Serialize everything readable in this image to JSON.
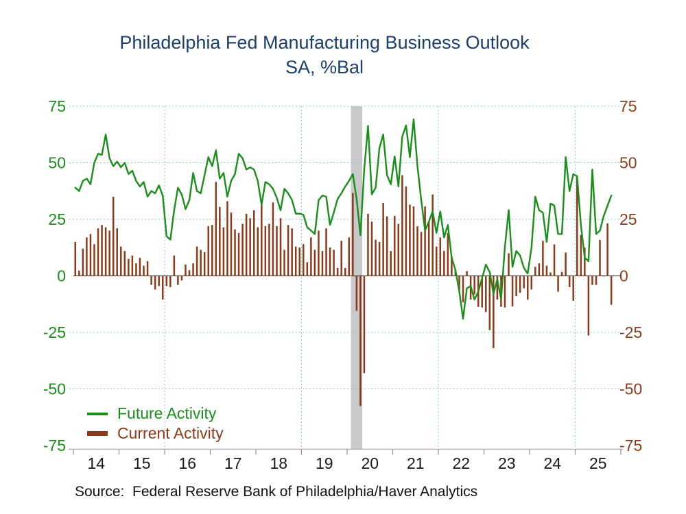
{
  "page": {
    "background": "#FFFFFF"
  },
  "title": {
    "line1": "Philadelphia Fed Manufacturing Business Outlook",
    "line2": "SA, %Bal",
    "color": "#1B3F6E"
  },
  "legend": {
    "items": [
      {
        "label": "Future Activity",
        "series": "future",
        "swatch": "line",
        "color": "#189018"
      },
      {
        "label": "Current Activity",
        "series": "current",
        "swatch": "bar",
        "color": "#8E3A18"
      }
    ]
  },
  "source": {
    "text": "Source:  Federal Reserve Bank of Philadelphia/Haver Analytics",
    "color": "#111111"
  },
  "colors": {
    "title": "#1B3F6E",
    "future_line": "#189018",
    "current_bar": "#8E3A18",
    "left_axis_text": "#189018",
    "right_axis_text": "#8E3A18",
    "grid": "#82CEDF",
    "axis_line": "#B7A8C6",
    "tick": "#8F8FA0",
    "tick_label": "#1A1A1A",
    "zero_line": "#4A4A4A",
    "recession_band": "#C9C9C9"
  },
  "chart_data": {
    "type": "line+bar combo, monthly time series",
    "title": "Philadelphia Fed Manufacturing Business Outlook",
    "subtitle": "SA, %Bal",
    "frequency": "monthly",
    "x_start": "2014-01",
    "x_end": "2025-10",
    "x_tick_labels": [
      "14",
      "15",
      "16",
      "17",
      "18",
      "19",
      "20",
      "21",
      "22",
      "23",
      "24",
      "25"
    ],
    "y_ticks": [
      75,
      50,
      25,
      0,
      -25,
      -50,
      -75
    ],
    "ylim": [
      -75,
      75
    ],
    "h_gridlines": [
      75,
      50,
      25,
      -25,
      -50
    ],
    "v_gridline_years": [
      2016,
      2019,
      2022,
      2025
    ],
    "grid_style": "dotted light blue",
    "legend_position": "bottom-left inside plot",
    "recession_band": {
      "from": "2020-02",
      "to": "2020-04"
    },
    "series": [
      {
        "name": "Future Activity",
        "type": "line",
        "color": "#189018",
        "values": [
          39,
          37.5,
          42,
          43,
          40.5,
          50,
          54,
          53.5,
          62.5,
          52,
          48.5,
          50.5,
          48,
          50,
          45,
          46.5,
          42,
          39.5,
          41.5,
          35,
          37.5,
          36.5,
          40,
          35.5,
          17.5,
          16,
          29,
          39,
          36,
          29.5,
          33.5,
          45.5,
          37.5,
          36.5,
          44.5,
          52.5,
          48.5,
          55.5,
          43,
          45.5,
          35,
          42,
          45,
          54,
          52,
          47,
          48,
          47,
          42,
          31.5,
          41.5,
          40.5,
          38.5,
          34.5,
          29,
          38.5,
          36.5,
          33.5,
          27.5,
          27.5,
          27,
          21.5,
          20,
          18.5,
          33.5,
          35.5,
          35,
          22.5,
          28,
          34,
          36.5,
          39.5,
          42,
          45,
          34,
          18,
          47,
          66.3,
          36,
          39,
          56.5,
          62.5,
          44.5,
          40.5,
          52.8,
          39.5,
          61.5,
          66.5,
          52.5,
          69.2,
          48.5,
          33.5,
          20,
          24,
          28.5,
          19,
          28.5,
          17,
          22.5,
          8,
          2.5,
          -6.8,
          -19,
          -5.5,
          -4.5,
          -10.5,
          -7,
          -1,
          5,
          1.7,
          -8,
          -1.5,
          -10.3,
          12.7,
          29.1,
          4,
          11,
          9,
          3.5,
          1,
          12.5,
          35,
          29,
          28,
          15,
          32,
          31,
          18.5,
          18.5,
          52.5,
          37.5,
          45,
          44,
          22.5,
          8,
          6.5,
          47,
          18.5,
          20,
          26.5,
          31,
          35.5
        ]
      },
      {
        "name": "Current Activity",
        "type": "bar",
        "color": "#8E3A18",
        "values": [
          15,
          2.3,
          12,
          17,
          18.5,
          14,
          21,
          22.5,
          21.5,
          20,
          35,
          21,
          13,
          11,
          7.5,
          9,
          5.5,
          8,
          4.5,
          6.5,
          -4,
          -6,
          -4.5,
          -10.5,
          -4.5,
          -5,
          9,
          -4,
          -2,
          5,
          2.5,
          5.5,
          13,
          11.5,
          10.5,
          22,
          22.5,
          41.5,
          30.5,
          21.5,
          33,
          28,
          20.5,
          19,
          23,
          27.5,
          25.5,
          29,
          21.5,
          32,
          22,
          23,
          32.5,
          22,
          25.5,
          11.5,
          22.5,
          21,
          13,
          12.5,
          14,
          6,
          17,
          11.5,
          20,
          11,
          21,
          12.5,
          11.5,
          3.5,
          15.5,
          3.5,
          17,
          36.7,
          -15.5,
          -57.5,
          -43,
          27.5,
          24,
          16,
          15,
          32.3,
          26.3,
          11,
          26.5,
          23,
          44.5,
          39.5,
          31.5,
          30.7,
          21.9,
          19.4,
          30.7,
          23.8,
          36,
          13,
          17,
          11,
          19,
          8.5,
          3,
          -6.2,
          -11.7,
          2.1,
          -10.5,
          -8.2,
          -13.7,
          -14,
          -16,
          -24,
          -32,
          -10.5,
          -13.7,
          -14,
          10,
          -13.5,
          -9,
          -7.5,
          -5.5,
          -10.5,
          -6,
          4,
          5.5,
          15.5,
          4.5,
          1.5,
          13.9,
          -7,
          1.7,
          10.3,
          -5,
          -11,
          44.3,
          18.1,
          12.5,
          -26.4,
          -4,
          -4,
          15.9,
          -0.3,
          23.2,
          -12.8
        ]
      }
    ]
  }
}
